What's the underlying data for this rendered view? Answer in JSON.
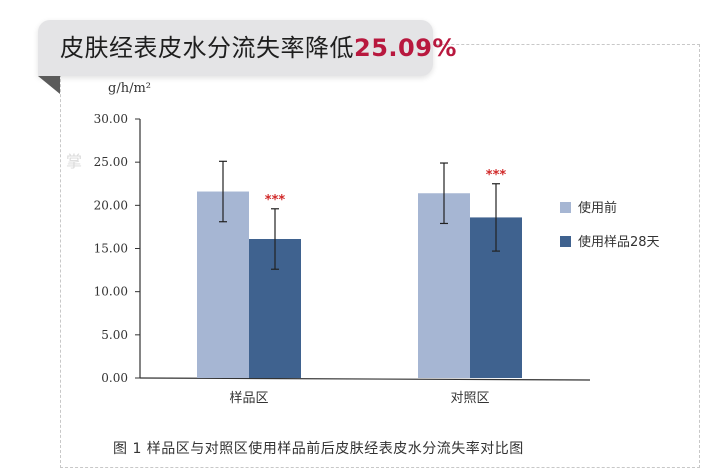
{
  "banner": {
    "title": "皮肤经表皮水分流失率降低",
    "highlight": "25.09%",
    "highlight_color": "#b8183e"
  },
  "watermark": "掌",
  "figure_caption": "图 1  样品区与对照区使用样品前后皮肤经表皮水分流失率对比图",
  "chart_data": {
    "type": "bar",
    "unit_label": "g/h/m²",
    "ylim": [
      0,
      30
    ],
    "y_ticks": [
      "0.00",
      "5.00",
      "10.00",
      "15.00",
      "20.00",
      "25.00",
      "30.00"
    ],
    "categories": [
      "样品区",
      "对照区"
    ],
    "series": [
      {
        "name": "使用前",
        "color": "#a6b6d3",
        "values": [
          21.6,
          21.4
        ],
        "errors": [
          3.5,
          3.5
        ]
      },
      {
        "name": "使用样品28天",
        "color": "#3f628f",
        "values": [
          16.1,
          18.6
        ],
        "errors": [
          3.5,
          3.9
        ]
      }
    ],
    "significance": [
      {
        "category": 0,
        "series": 1,
        "label": "***"
      },
      {
        "category": 1,
        "series": 1,
        "label": "***"
      }
    ],
    "significance_color": "#d12a2a",
    "legend_position": "right",
    "grid": false
  }
}
